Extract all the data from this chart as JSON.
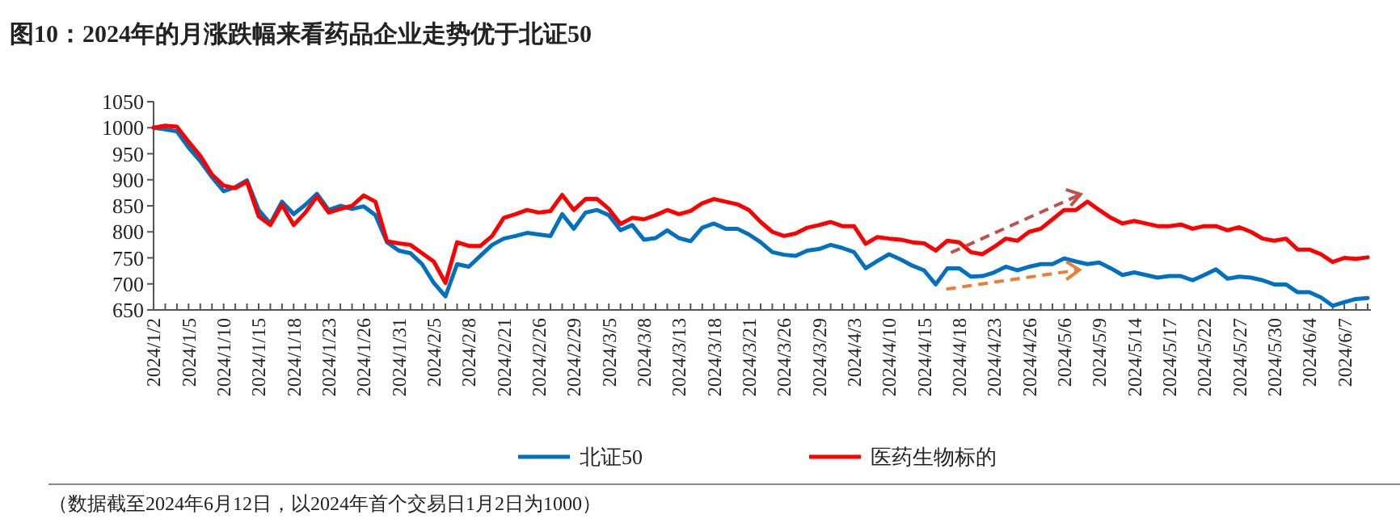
{
  "chart_data": {
    "type": "line",
    "title": "图10：2024年的月涨跌幅来看药品企业走势优于北证50",
    "categories": [
      "2024/1/2",
      null,
      null,
      "2024/1/5",
      null,
      null,
      "2024/1/10",
      null,
      null,
      "2024/1/15",
      null,
      null,
      "2024/1/18",
      null,
      null,
      "2024/1/23",
      null,
      null,
      "2024/1/26",
      null,
      null,
      "2024/1/31",
      null,
      null,
      "2024/2/5",
      null,
      null,
      "2024/2/8",
      null,
      null,
      "2024/2/21",
      null,
      null,
      "2024/2/26",
      null,
      null,
      "2024/2/29",
      null,
      null,
      "2024/3/5",
      null,
      null,
      "2024/3/8",
      null,
      null,
      "2024/3/13",
      null,
      null,
      "2024/3/18",
      null,
      null,
      "2024/3/21",
      null,
      null,
      "2024/3/26",
      null,
      null,
      "2024/3/29",
      null,
      null,
      "2024/4/3",
      null,
      null,
      "2024/4/10",
      null,
      null,
      "2024/4/15",
      null,
      null,
      "2024/4/18",
      null,
      null,
      "2024/4/23",
      null,
      null,
      "2024/4/26",
      null,
      null,
      "2024/5/6",
      null,
      null,
      "2024/5/9",
      null,
      null,
      "2024/5/14",
      null,
      null,
      "2024/5/17",
      null,
      null,
      "2024/5/22",
      null,
      null,
      "2024/5/27",
      null,
      null,
      "2024/5/30",
      null,
      null,
      "2024/6/4",
      null,
      null,
      "2024/6/7",
      null,
      null
    ],
    "series": [
      {
        "name": "北证50",
        "color": "#0070c0",
        "values": [
          1000,
          997,
          993,
          962,
          936,
          905,
          878,
          886,
          899,
          842,
          816,
          858,
          834,
          852,
          873,
          842,
          850,
          844,
          849,
          832,
          780,
          764,
          759,
          738,
          702,
          676,
          738,
          733,
          754,
          775,
          787,
          792,
          798,
          795,
          792,
          834,
          806,
          837,
          842,
          832,
          803,
          813,
          785,
          788,
          803,
          788,
          782,
          808,
          816,
          806,
          806,
          795,
          780,
          761,
          756,
          754,
          764,
          767,
          775,
          769,
          761,
          730,
          744,
          757,
          747,
          735,
          726,
          699,
          730,
          730,
          714,
          715,
          722,
          733,
          726,
          733,
          738,
          738,
          749,
          743,
          738,
          741,
          730,
          717,
          722,
          717,
          712,
          715,
          715,
          707,
          717,
          728,
          710,
          714,
          712,
          707,
          699,
          699,
          684,
          684,
          674,
          658,
          665,
          671,
          673
        ]
      },
      {
        "name": "医药生物标的",
        "color": "#ff0000",
        "values": [
          1000,
          1004,
          1002,
          973,
          946,
          910,
          889,
          884,
          896,
          830,
          813,
          852,
          813,
          837,
          868,
          837,
          844,
          850,
          870,
          858,
          782,
          778,
          775,
          759,
          743,
          702,
          780,
          773,
          773,
          792,
          827,
          834,
          842,
          837,
          840,
          871,
          842,
          863,
          863,
          844,
          815,
          827,
          824,
          832,
          842,
          834,
          840,
          855,
          863,
          858,
          853,
          842,
          819,
          800,
          792,
          797,
          808,
          813,
          819,
          811,
          811,
          777,
          790,
          787,
          785,
          780,
          778,
          764,
          783,
          780,
          761,
          757,
          771,
          787,
          783,
          800,
          806,
          824,
          842,
          842,
          858,
          842,
          827,
          816,
          821,
          816,
          811,
          811,
          814,
          806,
          811,
          811,
          803,
          809,
          800,
          787,
          783,
          787,
          766,
          766,
          757,
          742,
          750,
          748,
          751
        ]
      }
    ],
    "ylim": [
      650,
      1050
    ],
    "yticks": [
      650,
      700,
      750,
      800,
      850,
      900,
      950,
      1000,
      1050
    ],
    "grid": false,
    "legend": "bottom",
    "annotations": [
      "（数据截至2024年6月12日，以2024年首个交易日1月2日为1000）"
    ]
  }
}
